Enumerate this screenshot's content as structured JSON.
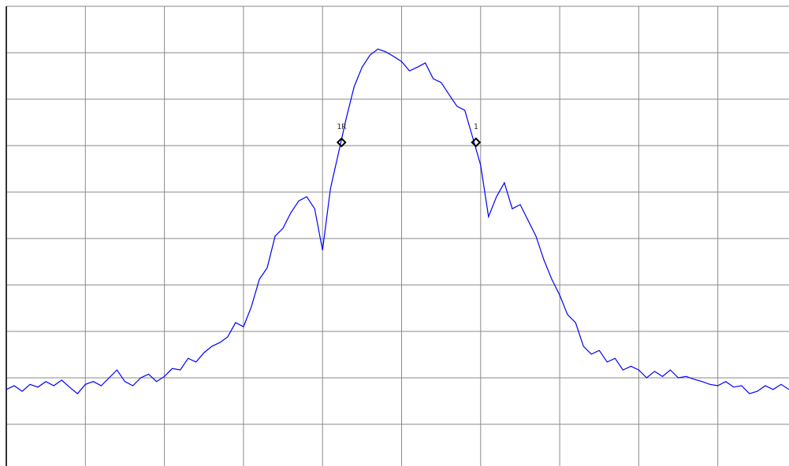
{
  "chart_data": {
    "type": "line",
    "xlim": [
      0,
      10
    ],
    "ylim": [
      0,
      10
    ],
    "xticks": [
      0,
      1,
      2,
      3,
      4,
      5,
      6,
      7,
      8,
      9
    ],
    "yticks": [
      1,
      2,
      3,
      4,
      5,
      6,
      7,
      8,
      9,
      10
    ],
    "grid": true,
    "series": [
      {
        "color": "#0000ff",
        "x": [
          0,
          0.1,
          0.2,
          0.3,
          0.4,
          0.5,
          0.6,
          0.7,
          0.8,
          0.9,
          1,
          1.1,
          1.2,
          1.3,
          1.4,
          1.5,
          1.6,
          1.7,
          1.8,
          1.9,
          2,
          2.1,
          2.2,
          2.3,
          2.4,
          2.5,
          2.6,
          2.7,
          2.8,
          2.9,
          3,
          3.1,
          3.2,
          3.3,
          3.4,
          3.5,
          3.6,
          3.7,
          3.8,
          3.9,
          4,
          4.1,
          4.2,
          4.3,
          4.4,
          4.5,
          4.6,
          4.7,
          4.8,
          4.9,
          5,
          5.1,
          5.2,
          5.3,
          5.4,
          5.5,
          5.6,
          5.7,
          5.8,
          5.9,
          6,
          6.1,
          6.2,
          6.3,
          6.4,
          6.5,
          6.6,
          6.7,
          6.8,
          6.9,
          7,
          7.1,
          7.2,
          7.3,
          7.4,
          7.5,
          7.6,
          7.7,
          7.8,
          7.9,
          8,
          8.1,
          8.2,
          8.3,
          8.4,
          8.5,
          8.6,
          8.7,
          8.8,
          8.9,
          9,
          9.1,
          9.2,
          9.3,
          9.4,
          9.5,
          9.6,
          9.7,
          9.8,
          9.9
        ],
        "values": [
          1.75,
          1.83,
          1.71,
          1.86,
          1.8,
          1.92,
          1.83,
          1.95,
          1.8,
          1.66,
          1.86,
          1.92,
          1.83,
          2.0,
          2.17,
          1.92,
          1.83,
          2.0,
          2.08,
          1.92,
          2.03,
          2.2,
          2.17,
          2.42,
          2.34,
          2.54,
          2.68,
          2.76,
          2.88,
          3.19,
          3.1,
          3.53,
          4.12,
          4.37,
          5.05,
          5.22,
          5.56,
          5.81,
          5.9,
          5.64,
          4.75,
          6.07,
          6.83,
          7.59,
          8.27,
          8.69,
          8.95,
          9.08,
          9.02,
          8.92,
          8.81,
          8.61,
          8.69,
          8.78,
          8.44,
          8.36,
          8.1,
          7.85,
          7.76,
          7.17,
          6.58,
          5.47,
          5.9,
          6.2,
          5.64,
          5.73,
          5.39,
          5.05,
          4.54,
          4.12,
          3.78,
          3.36,
          3.19,
          2.68,
          2.51,
          2.59,
          2.34,
          2.42,
          2.17,
          2.25,
          2.17,
          2.0,
          2.14,
          2.03,
          2.17,
          2.0,
          2.03,
          1.97,
          1.92,
          1.86,
          1.83,
          1.92,
          1.8,
          1.83,
          1.66,
          1.71,
          1.83,
          1.75,
          1.86,
          1.75
        ]
      }
    ],
    "markers": [
      {
        "label": "1R",
        "x": 4.24,
        "y": 7.07
      },
      {
        "label": "1",
        "x": 5.94,
        "y": 7.07
      }
    ]
  }
}
